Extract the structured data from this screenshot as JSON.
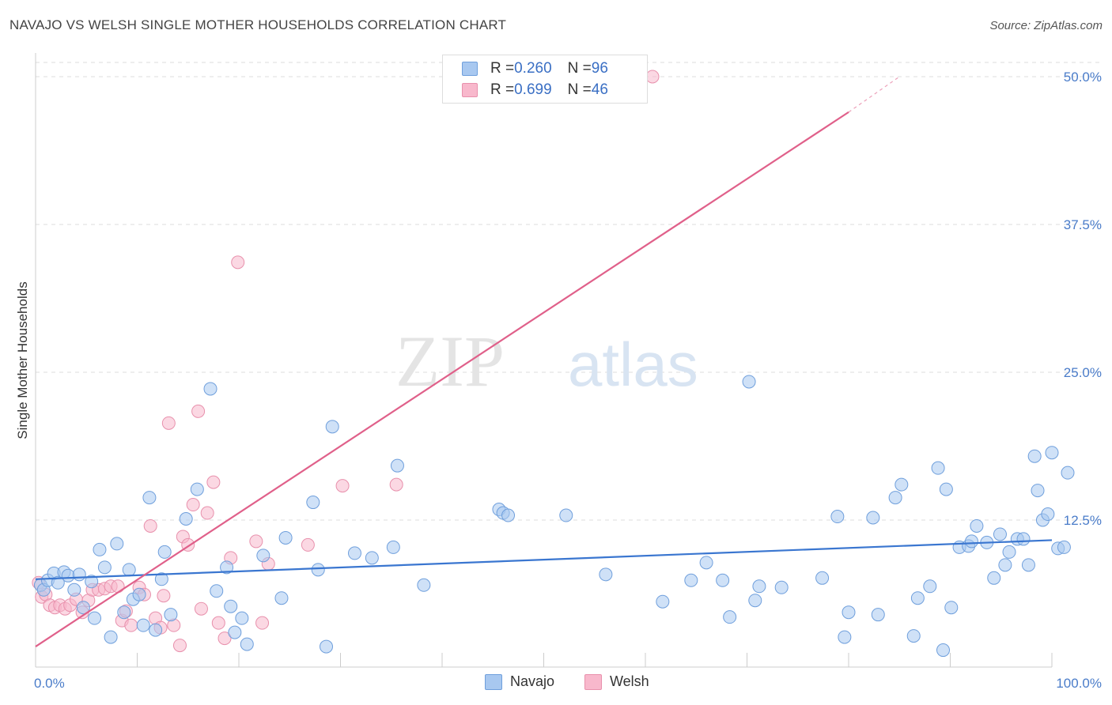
{
  "title": "NAVAJO VS WELSH SINGLE MOTHER HOUSEHOLDS CORRELATION CHART",
  "source": "Source: ZipAtlas.com",
  "watermark": {
    "part1": "ZIP",
    "part2": "atlas"
  },
  "colors": {
    "navajo_fill": "#a8c8f0",
    "navajo_stroke": "#6f9fdc",
    "navajo_line": "#3a76d0",
    "welsh_fill": "#f8b8cc",
    "welsh_stroke": "#e890ac",
    "welsh_line": "#e0608a",
    "grid": "#dddddd",
    "tick_text": "#4a7cc9"
  },
  "legend": {
    "rows": [
      {
        "r_label": "R = ",
        "r_value": "0.260",
        "n_label": "N = ",
        "n_value": "96"
      },
      {
        "r_label": "R = ",
        "r_value": "0.699",
        "n_label": "N = ",
        "n_value": "46"
      }
    ],
    "bottom": [
      "Navajo",
      "Welsh"
    ]
  },
  "chart_data": {
    "type": "scatter",
    "title": "NAVAJO VS WELSH SINGLE MOTHER HOUSEHOLDS CORRELATION CHART",
    "xlabel": "",
    "ylabel": "Single Mother Households",
    "xlim": [
      0,
      100
    ],
    "ylim": [
      0,
      50
    ],
    "x_tick_labels": [
      "0.0%",
      "100.0%"
    ],
    "y_ticks": [
      12.5,
      25.0,
      37.5,
      50.0
    ],
    "y_tick_labels": [
      "12.5%",
      "25.0%",
      "37.5%",
      "50.0%"
    ],
    "grid": true,
    "series": [
      {
        "name": "Navajo",
        "r": 0.26,
        "n": 96,
        "trend": {
          "x": [
            0,
            100
          ],
          "y": [
            7.5,
            10.8
          ]
        },
        "points": [
          [
            0.5,
            7.0
          ],
          [
            0.8,
            6.6
          ],
          [
            1.2,
            7.4
          ],
          [
            1.8,
            8.0
          ],
          [
            2.2,
            7.2
          ],
          [
            2.8,
            8.1
          ],
          [
            3.2,
            7.8
          ],
          [
            3.8,
            6.6
          ],
          [
            4.3,
            7.9
          ],
          [
            4.7,
            5.1
          ],
          [
            5.5,
            7.3
          ],
          [
            5.8,
            4.2
          ],
          [
            6.3,
            10.0
          ],
          [
            6.8,
            8.5
          ],
          [
            7.4,
            2.6
          ],
          [
            8.0,
            10.5
          ],
          [
            8.7,
            4.7
          ],
          [
            9.2,
            8.3
          ],
          [
            9.6,
            5.8
          ],
          [
            10.2,
            6.2
          ],
          [
            10.6,
            3.6
          ],
          [
            11.2,
            14.4
          ],
          [
            11.8,
            3.2
          ],
          [
            12.4,
            7.5
          ],
          [
            12.7,
            9.8
          ],
          [
            13.3,
            4.5
          ],
          [
            14.8,
            12.6
          ],
          [
            15.9,
            15.1
          ],
          [
            17.2,
            23.6
          ],
          [
            17.8,
            6.5
          ],
          [
            18.8,
            8.5
          ],
          [
            19.2,
            5.2
          ],
          [
            19.6,
            3.0
          ],
          [
            20.3,
            4.2
          ],
          [
            20.8,
            2.0
          ],
          [
            22.4,
            9.5
          ],
          [
            24.2,
            5.9
          ],
          [
            24.6,
            11.0
          ],
          [
            27.3,
            14.0
          ],
          [
            27.8,
            8.3
          ],
          [
            28.6,
            1.8
          ],
          [
            29.2,
            20.4
          ],
          [
            31.4,
            9.7
          ],
          [
            33.1,
            9.3
          ],
          [
            35.2,
            10.2
          ],
          [
            35.6,
            17.1
          ],
          [
            38.2,
            7.0
          ],
          [
            45.6,
            13.4
          ],
          [
            46.0,
            13.1
          ],
          [
            46.5,
            12.9
          ],
          [
            52.2,
            12.9
          ],
          [
            56.1,
            7.9
          ],
          [
            61.7,
            5.6
          ],
          [
            64.5,
            7.4
          ],
          [
            66.0,
            8.9
          ],
          [
            67.6,
            7.4
          ],
          [
            68.3,
            4.3
          ],
          [
            70.2,
            24.2
          ],
          [
            70.8,
            5.7
          ],
          [
            71.2,
            6.9
          ],
          [
            73.4,
            6.8
          ],
          [
            77.4,
            7.6
          ],
          [
            78.9,
            12.8
          ],
          [
            79.6,
            2.6
          ],
          [
            80.0,
            4.7
          ],
          [
            82.4,
            12.7
          ],
          [
            82.9,
            4.5
          ],
          [
            84.6,
            14.4
          ],
          [
            85.2,
            15.5
          ],
          [
            86.4,
            2.7
          ],
          [
            86.8,
            5.9
          ],
          [
            88.0,
            6.9
          ],
          [
            88.8,
            16.9
          ],
          [
            89.3,
            1.5
          ],
          [
            89.6,
            15.1
          ],
          [
            90.1,
            5.1
          ],
          [
            90.9,
            10.2
          ],
          [
            91.8,
            10.3
          ],
          [
            92.1,
            10.7
          ],
          [
            92.6,
            12.0
          ],
          [
            93.6,
            10.6
          ],
          [
            94.3,
            7.6
          ],
          [
            94.9,
            11.3
          ],
          [
            95.4,
            8.7
          ],
          [
            95.8,
            9.8
          ],
          [
            96.6,
            10.9
          ],
          [
            97.2,
            10.9
          ],
          [
            97.7,
            8.7
          ],
          [
            98.3,
            17.9
          ],
          [
            98.6,
            15.0
          ],
          [
            99.1,
            12.5
          ],
          [
            99.6,
            13.0
          ],
          [
            100.0,
            18.2
          ],
          [
            100.6,
            10.1
          ],
          [
            101.2,
            10.2
          ],
          [
            101.7,
            16.5
          ]
        ]
      },
      {
        "name": "Welsh",
        "r": 0.699,
        "n": 46,
        "trend": {
          "x": [
            0,
            80
          ],
          "y": [
            1.8,
            47.0
          ],
          "dashed_to": {
            "x": 85,
            "y": 50.0
          }
        },
        "points": [
          [
            0.3,
            7.2
          ],
          [
            0.6,
            6.0
          ],
          [
            1.0,
            6.2
          ],
          [
            1.4,
            5.3
          ],
          [
            1.9,
            5.1
          ],
          [
            2.4,
            5.3
          ],
          [
            2.9,
            5.0
          ],
          [
            3.4,
            5.3
          ],
          [
            4.0,
            5.8
          ],
          [
            4.6,
            4.7
          ],
          [
            5.2,
            5.7
          ],
          [
            5.6,
            6.6
          ],
          [
            6.2,
            6.6
          ],
          [
            6.8,
            6.7
          ],
          [
            7.4,
            6.9
          ],
          [
            8.1,
            6.9
          ],
          [
            8.5,
            4.0
          ],
          [
            8.9,
            4.8
          ],
          [
            9.4,
            3.6
          ],
          [
            10.2,
            6.8
          ],
          [
            10.7,
            6.2
          ],
          [
            11.3,
            12.0
          ],
          [
            11.8,
            4.2
          ],
          [
            12.3,
            3.4
          ],
          [
            12.6,
            6.1
          ],
          [
            13.1,
            20.7
          ],
          [
            13.6,
            3.6
          ],
          [
            14.2,
            1.9
          ],
          [
            14.5,
            11.1
          ],
          [
            15.0,
            10.4
          ],
          [
            15.5,
            13.8
          ],
          [
            16.0,
            21.7
          ],
          [
            16.3,
            5.0
          ],
          [
            16.9,
            13.1
          ],
          [
            17.5,
            15.7
          ],
          [
            18.0,
            3.8
          ],
          [
            18.6,
            2.5
          ],
          [
            19.2,
            9.3
          ],
          [
            19.9,
            34.3
          ],
          [
            21.7,
            10.7
          ],
          [
            22.3,
            3.8
          ],
          [
            22.9,
            8.8
          ],
          [
            26.8,
            10.4
          ],
          [
            30.2,
            15.4
          ],
          [
            35.5,
            15.5
          ],
          [
            60.7,
            50.0
          ]
        ]
      }
    ]
  }
}
